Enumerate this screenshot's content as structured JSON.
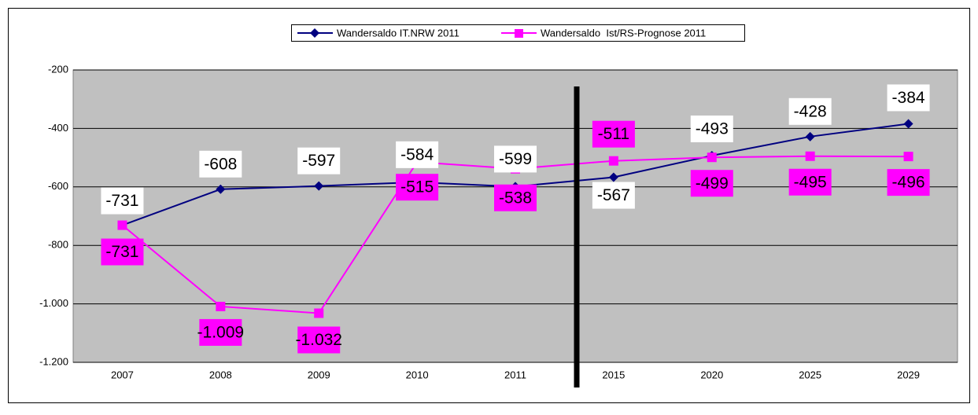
{
  "chart_data": {
    "type": "line",
    "categories": [
      "2007",
      "2008",
      "2009",
      "2010",
      "2011",
      "2015",
      "2020",
      "2025",
      "2029"
    ],
    "series": [
      {
        "name": "Wandersaldo IT.NRW 2011",
        "color": "#000080",
        "values": [
          -731,
          -608,
          -597,
          -584,
          -599,
          -567,
          -493,
          -428,
          -384
        ],
        "value_labels": [
          "-731",
          "-608",
          "-597",
          "-584",
          "-599",
          "-567",
          "-493",
          "-428",
          "-384"
        ]
      },
      {
        "name": "Wandersaldo  Ist/RS-Prognose 2011",
        "color": "#ff00ff",
        "values": [
          -731,
          -1009,
          -1032,
          -515,
          -538,
          -511,
          -499,
          -495,
          -496
        ],
        "value_labels": [
          "-731",
          "-1.009",
          "-1.032",
          "-515",
          "-538",
          "-511",
          "-499",
          "-495",
          "-496"
        ]
      }
    ],
    "ylim": [
      -1200,
      -200
    ],
    "yticks": [
      -200,
      -400,
      -600,
      -800,
      {
        "value": -1000,
        "label": "-1.000"
      },
      {
        "value": -1200,
        "label": "-1.200"
      }
    ],
    "grid": true
  }
}
